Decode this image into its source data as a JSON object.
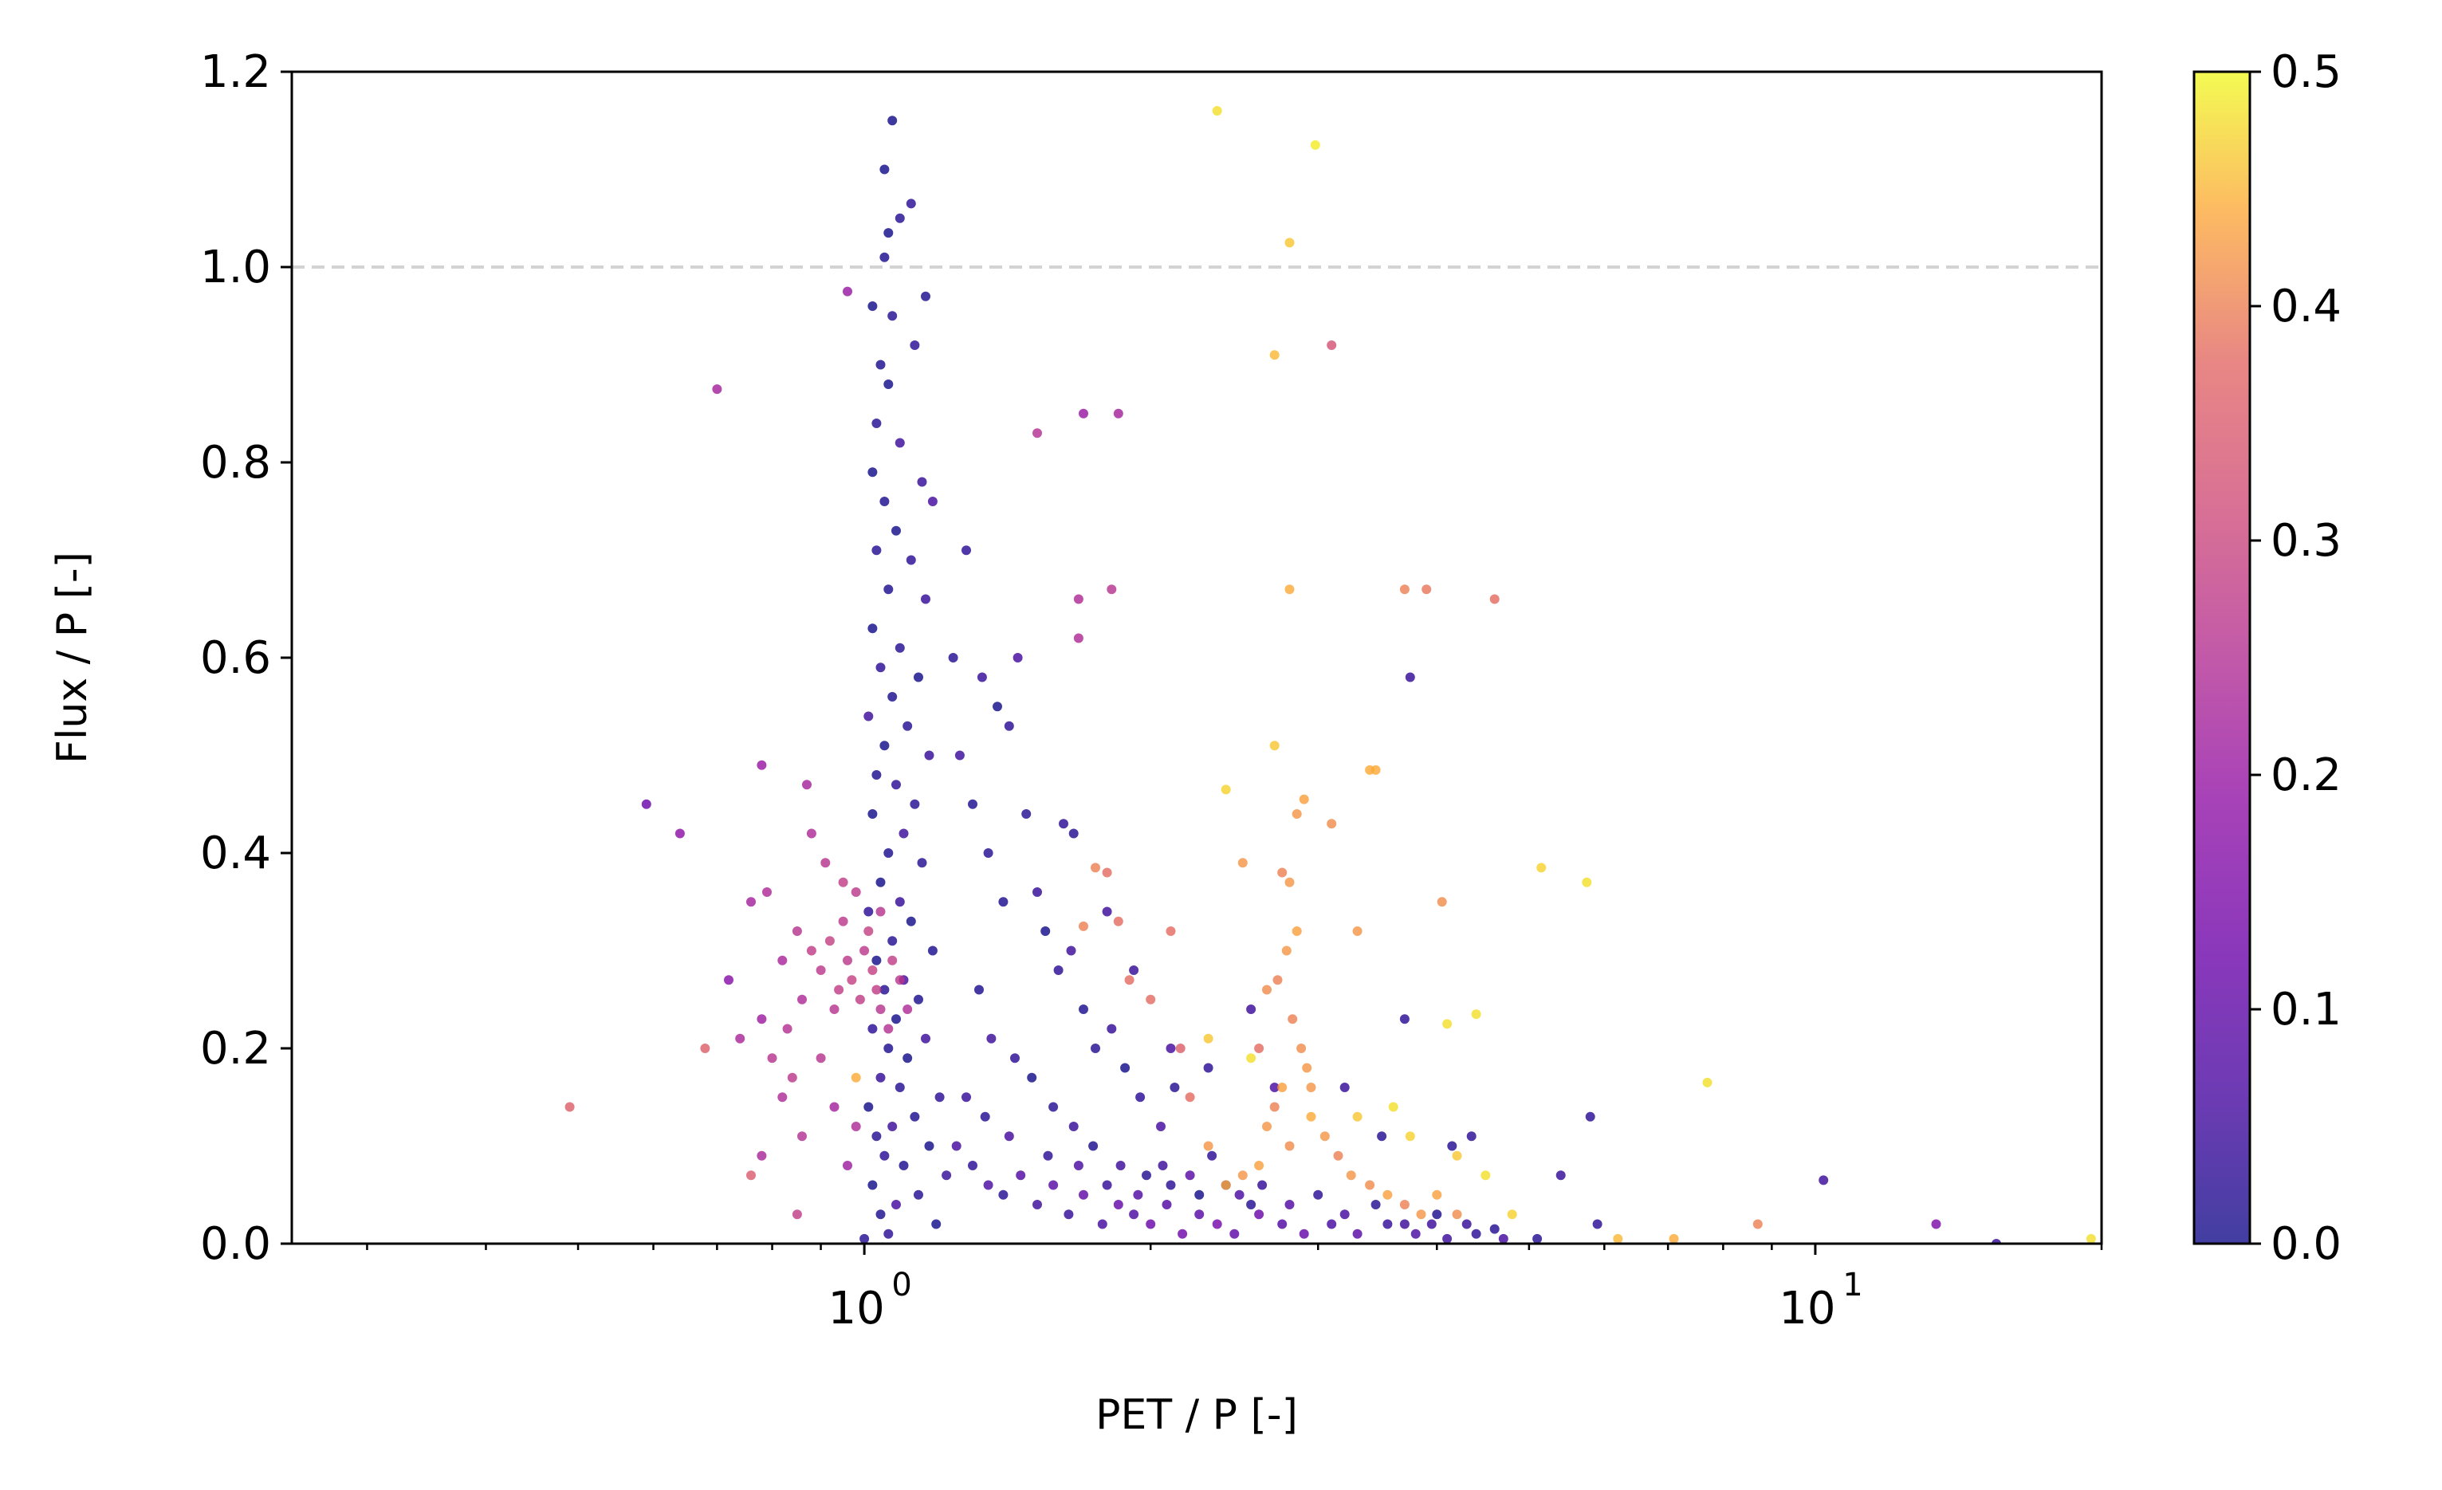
{
  "chart_data": {
    "type": "scatter",
    "title": "",
    "xlabel": "PET / P [-]",
    "ylabel": "Flux / P [-]",
    "xscale": "log",
    "xlim": [
      0.25,
      20
    ],
    "ylim": [
      0,
      1.2
    ],
    "x_ticks": [
      {
        "value": 1,
        "base": "10",
        "exp": "0"
      },
      {
        "value": 10,
        "base": "10",
        "exp": "1"
      }
    ],
    "y_ticks": [
      {
        "value": 0.0,
        "label": "0.0"
      },
      {
        "value": 0.2,
        "label": "0.2"
      },
      {
        "value": 0.4,
        "label": "0.4"
      },
      {
        "value": 0.6,
        "label": "0.6"
      },
      {
        "value": 0.8,
        "label": "0.8"
      },
      {
        "value": 1.0,
        "label": "1.0"
      },
      {
        "value": 1.2,
        "label": "1.2"
      }
    ],
    "reference_line": {
      "y": 1.0,
      "style": "dashed",
      "color": "#d3d3d3"
    },
    "grid": false,
    "legend": "none",
    "colorbar": {
      "colormap": "plasma",
      "range": [
        0.0,
        0.5
      ],
      "ticks": [
        {
          "value": 0.0,
          "label": "0.0"
        },
        {
          "value": 0.1,
          "label": "0.1"
        },
        {
          "value": 0.2,
          "label": "0.2"
        },
        {
          "value": 0.3,
          "label": "0.3"
        },
        {
          "value": 0.4,
          "label": "0.4"
        },
        {
          "value": 0.5,
          "label": "0.5"
        }
      ]
    },
    "points": [
      [
        1.07,
        1.15,
        0.0
      ],
      [
        1.05,
        1.1,
        0.0
      ],
      [
        1.09,
        1.05,
        0.02
      ],
      [
        1.12,
        1.065,
        0.03
      ],
      [
        1.06,
        1.035,
        0.0
      ],
      [
        1.05,
        1.01,
        0.01
      ],
      [
        1.16,
        0.97,
        0.01
      ],
      [
        1.02,
        0.96,
        0.0
      ],
      [
        1.07,
        0.95,
        0.02
      ],
      [
        1.04,
        0.9,
        0.01
      ],
      [
        1.13,
        0.92,
        0.03
      ],
      [
        1.06,
        0.88,
        0.0
      ],
      [
        1.03,
        0.84,
        0.02
      ],
      [
        1.09,
        0.82,
        0.05
      ],
      [
        1.02,
        0.79,
        0.0
      ],
      [
        1.15,
        0.78,
        0.04
      ],
      [
        1.05,
        0.76,
        0.01
      ],
      [
        1.18,
        0.76,
        0.06
      ],
      [
        1.08,
        0.73,
        0.0
      ],
      [
        1.03,
        0.71,
        0.02
      ],
      [
        1.12,
        0.7,
        0.03
      ],
      [
        1.06,
        0.67,
        0.01
      ],
      [
        1.16,
        0.66,
        0.04
      ],
      [
        1.02,
        0.63,
        0.0
      ],
      [
        1.09,
        0.61,
        0.02
      ],
      [
        1.04,
        0.59,
        0.03
      ],
      [
        1.14,
        0.58,
        0.0
      ],
      [
        1.07,
        0.56,
        0.01
      ],
      [
        1.01,
        0.54,
        0.05
      ],
      [
        1.11,
        0.53,
        0.02
      ],
      [
        1.05,
        0.51,
        0.0
      ],
      [
        1.17,
        0.5,
        0.04
      ],
      [
        1.03,
        0.48,
        0.01
      ],
      [
        1.08,
        0.47,
        0.03
      ],
      [
        1.13,
        0.45,
        0.02
      ],
      [
        1.02,
        0.44,
        0.0
      ],
      [
        1.1,
        0.42,
        0.05
      ],
      [
        1.06,
        0.4,
        0.01
      ],
      [
        1.15,
        0.39,
        0.02
      ],
      [
        1.04,
        0.37,
        0.0
      ],
      [
        1.09,
        0.35,
        0.04
      ],
      [
        1.01,
        0.34,
        0.03
      ],
      [
        1.12,
        0.33,
        0.0
      ],
      [
        1.07,
        0.31,
        0.02
      ],
      [
        1.18,
        0.3,
        0.01
      ],
      [
        1.03,
        0.29,
        0.0
      ],
      [
        1.1,
        0.27,
        0.06
      ],
      [
        1.05,
        0.26,
        0.02
      ],
      [
        1.14,
        0.25,
        0.01
      ],
      [
        1.08,
        0.23,
        0.0
      ],
      [
        1.02,
        0.22,
        0.03
      ],
      [
        1.16,
        0.21,
        0.05
      ],
      [
        1.06,
        0.2,
        0.01
      ],
      [
        1.11,
        0.19,
        0.0
      ],
      [
        1.04,
        0.17,
        0.04
      ],
      [
        1.09,
        0.16,
        0.02
      ],
      [
        1.2,
        0.15,
        0.03
      ],
      [
        1.01,
        0.14,
        0.0
      ],
      [
        1.13,
        0.13,
        0.01
      ],
      [
        1.07,
        0.12,
        0.05
      ],
      [
        1.03,
        0.11,
        0.02
      ],
      [
        1.17,
        0.1,
        0.0
      ],
      [
        1.05,
        0.09,
        0.03
      ],
      [
        1.1,
        0.08,
        0.01
      ],
      [
        1.22,
        0.07,
        0.04
      ],
      [
        1.02,
        0.06,
        0.0
      ],
      [
        1.14,
        0.05,
        0.02
      ],
      [
        1.08,
        0.04,
        0.06
      ],
      [
        1.04,
        0.03,
        0.01
      ],
      [
        1.19,
        0.02,
        0.0
      ],
      [
        1.06,
        0.01,
        0.03
      ],
      [
        1.0,
        0.005,
        0.02
      ],
      [
        1.24,
        0.6,
        0.02
      ],
      [
        1.28,
        0.71,
        0.03
      ],
      [
        1.26,
        0.5,
        0.05
      ],
      [
        1.3,
        0.45,
        0.01
      ],
      [
        1.33,
        0.58,
        0.04
      ],
      [
        1.35,
        0.4,
        0.02
      ],
      [
        1.38,
        0.55,
        0.0
      ],
      [
        1.42,
        0.53,
        0.03
      ],
      [
        1.45,
        0.6,
        0.06
      ],
      [
        1.4,
        0.35,
        0.01
      ],
      [
        1.48,
        0.44,
        0.02
      ],
      [
        1.52,
        0.36,
        0.04
      ],
      [
        1.55,
        0.32,
        0.0
      ],
      [
        1.6,
        0.28,
        0.03
      ],
      [
        1.65,
        0.3,
        0.05
      ],
      [
        1.7,
        0.24,
        0.01
      ],
      [
        1.75,
        0.2,
        0.02
      ],
      [
        1.82,
        0.22,
        0.04
      ],
      [
        1.88,
        0.18,
        0.0
      ],
      [
        1.95,
        0.15,
        0.03
      ],
      [
        2.05,
        0.12,
        0.06
      ],
      [
        2.12,
        0.16,
        0.02
      ],
      [
        1.32,
        0.26,
        0.01
      ],
      [
        1.36,
        0.21,
        0.05
      ],
      [
        1.44,
        0.19,
        0.03
      ],
      [
        1.5,
        0.17,
        0.0
      ],
      [
        1.58,
        0.14,
        0.02
      ],
      [
        1.66,
        0.12,
        0.04
      ],
      [
        1.74,
        0.1,
        0.01
      ],
      [
        1.86,
        0.08,
        0.05
      ],
      [
        1.98,
        0.07,
        0.02
      ],
      [
        2.1,
        0.06,
        0.03
      ],
      [
        2.25,
        0.05,
        0.0
      ],
      [
        2.4,
        0.06,
        0.04
      ],
      [
        2.55,
        0.04,
        0.02
      ],
      [
        1.25,
        0.1,
        0.06
      ],
      [
        1.3,
        0.08,
        0.03
      ],
      [
        1.35,
        0.06,
        0.07
      ],
      [
        1.4,
        0.05,
        0.02
      ],
      [
        1.46,
        0.07,
        0.08
      ],
      [
        1.52,
        0.04,
        0.05
      ],
      [
        1.58,
        0.06,
        0.09
      ],
      [
        1.64,
        0.03,
        0.04
      ],
      [
        1.7,
        0.05,
        0.1
      ],
      [
        1.78,
        0.02,
        0.06
      ],
      [
        1.85,
        0.04,
        0.11
      ],
      [
        1.92,
        0.03,
        0.07
      ],
      [
        2.0,
        0.02,
        0.12
      ],
      [
        2.08,
        0.04,
        0.08
      ],
      [
        2.16,
        0.01,
        0.13
      ],
      [
        2.25,
        0.03,
        0.09
      ],
      [
        2.35,
        0.02,
        0.14
      ],
      [
        2.45,
        0.01,
        0.1
      ],
      [
        2.6,
        0.03,
        0.12
      ],
      [
        2.75,
        0.02,
        0.08
      ],
      [
        2.9,
        0.01,
        0.11
      ],
      [
        3.1,
        0.02,
        0.06
      ],
      [
        3.3,
        0.01,
        0.09
      ],
      [
        3.55,
        0.02,
        0.04
      ],
      [
        3.8,
        0.01,
        0.07
      ],
      [
        4.1,
        0.005,
        0.05
      ],
      [
        4.4,
        0.01,
        0.03
      ],
      [
        4.7,
        0.005,
        0.06
      ],
      [
        5.1,
        0.005,
        0.02
      ],
      [
        1.28,
        0.15,
        0.04
      ],
      [
        1.34,
        0.13,
        0.02
      ],
      [
        1.42,
        0.11,
        0.06
      ],
      [
        1.56,
        0.09,
        0.03
      ],
      [
        1.68,
        0.08,
        0.07
      ],
      [
        1.8,
        0.06,
        0.04
      ],
      [
        1.94,
        0.05,
        0.08
      ],
      [
        2.06,
        0.08,
        0.05
      ],
      [
        2.2,
        0.07,
        0.09
      ],
      [
        2.32,
        0.09,
        0.03
      ],
      [
        2.48,
        0.05,
        0.07
      ],
      [
        2.62,
        0.06,
        0.04
      ],
      [
        2.8,
        0.04,
        0.08
      ],
      [
        3.0,
        0.05,
        0.03
      ],
      [
        3.2,
        0.03,
        0.06
      ],
      [
        3.45,
        0.04,
        0.02
      ],
      [
        3.7,
        0.02,
        0.05
      ],
      [
        4.0,
        0.03,
        0.01
      ],
      [
        4.3,
        0.02,
        0.04
      ],
      [
        4.6,
        0.015,
        0.02
      ],
      [
        1.62,
        0.43,
        0.03
      ],
      [
        1.66,
        0.42,
        0.02
      ],
      [
        1.8,
        0.34,
        0.05
      ],
      [
        1.92,
        0.28,
        0.04
      ],
      [
        2.1,
        0.2,
        0.06
      ],
      [
        2.3,
        0.18,
        0.03
      ],
      [
        2.55,
        0.24,
        0.05
      ],
      [
        2.7,
        0.16,
        0.07
      ],
      [
        3.2,
        0.16,
        0.04
      ],
      [
        3.5,
        0.11,
        0.02
      ],
      [
        3.7,
        0.23,
        0.03
      ],
      [
        4.15,
        0.1,
        0.02
      ],
      [
        4.35,
        0.11,
        0.03
      ],
      [
        3.95,
        0.02,
        0.05
      ],
      [
        5.8,
        0.13,
        0.03
      ],
      [
        5.4,
        0.07,
        0.04
      ],
      [
        5.9,
        0.02,
        0.03
      ],
      [
        3.75,
        0.58,
        0.04
      ],
      [
        10.2,
        0.065,
        0.05
      ],
      [
        15.5,
        0.0,
        0.04
      ],
      [
        13.4,
        0.02,
        0.15
      ],
      [
        0.7,
        0.875,
        0.22
      ],
      [
        0.96,
        0.975,
        0.2
      ],
      [
        1.7,
        0.85,
        0.2
      ],
      [
        1.85,
        0.85,
        0.22
      ],
      [
        1.82,
        0.67,
        0.26
      ],
      [
        1.68,
        0.66,
        0.24
      ],
      [
        1.52,
        0.83,
        0.25
      ],
      [
        1.68,
        0.62,
        0.24
      ],
      [
        0.59,
        0.45,
        0.12
      ],
      [
        0.64,
        0.42,
        0.18
      ],
      [
        0.78,
        0.49,
        0.2
      ],
      [
        0.87,
        0.47,
        0.22
      ],
      [
        0.88,
        0.42,
        0.24
      ],
      [
        0.91,
        0.39,
        0.26
      ],
      [
        0.95,
        0.37,
        0.28
      ],
      [
        0.98,
        0.36,
        0.27
      ],
      [
        0.76,
        0.35,
        0.22
      ],
      [
        0.79,
        0.36,
        0.24
      ],
      [
        0.82,
        0.29,
        0.23
      ],
      [
        0.85,
        0.32,
        0.26
      ],
      [
        0.88,
        0.3,
        0.28
      ],
      [
        0.9,
        0.28,
        0.27
      ],
      [
        0.92,
        0.31,
        0.29
      ],
      [
        0.94,
        0.26,
        0.28
      ],
      [
        0.96,
        0.29,
        0.27
      ],
      [
        0.97,
        0.27,
        0.29
      ],
      [
        0.99,
        0.25,
        0.28
      ],
      [
        1.0,
        0.3,
        0.27
      ],
      [
        1.02,
        0.28,
        0.29
      ],
      [
        1.03,
        0.26,
        0.28
      ],
      [
        1.04,
        0.24,
        0.26
      ],
      [
        1.01,
        0.32,
        0.29
      ],
      [
        0.95,
        0.33,
        0.27
      ],
      [
        0.93,
        0.24,
        0.26
      ],
      [
        0.86,
        0.25,
        0.24
      ],
      [
        0.83,
        0.22,
        0.25
      ],
      [
        0.8,
        0.19,
        0.26
      ],
      [
        0.78,
        0.23,
        0.21
      ],
      [
        0.72,
        0.27,
        0.17
      ],
      [
        0.74,
        0.21,
        0.23
      ],
      [
        0.84,
        0.17,
        0.27
      ],
      [
        0.82,
        0.15,
        0.24
      ],
      [
        0.9,
        0.19,
        0.26
      ],
      [
        0.93,
        0.14,
        0.22
      ],
      [
        0.86,
        0.11,
        0.25
      ],
      [
        0.78,
        0.09,
        0.23
      ],
      [
        0.76,
        0.07,
        0.35
      ],
      [
        0.85,
        0.03,
        0.28
      ],
      [
        0.68,
        0.2,
        0.36
      ],
      [
        0.49,
        0.14,
        0.36
      ],
      [
        0.96,
        0.08,
        0.21
      ],
      [
        0.98,
        0.12,
        0.24
      ],
      [
        1.04,
        0.34,
        0.26
      ],
      [
        1.07,
        0.29,
        0.28
      ],
      [
        1.09,
        0.27,
        0.27
      ],
      [
        1.06,
        0.22,
        0.25
      ],
      [
        1.11,
        0.24,
        0.24
      ],
      [
        2.35,
        1.16,
        0.48
      ],
      [
        2.98,
        1.125,
        0.49
      ],
      [
        2.8,
        1.025,
        0.46
      ],
      [
        2.7,
        0.91,
        0.45
      ],
      [
        3.1,
        0.92,
        0.33
      ],
      [
        2.8,
        0.67,
        0.44
      ],
      [
        3.7,
        0.67,
        0.4
      ],
      [
        3.9,
        0.67,
        0.39
      ],
      [
        4.6,
        0.66,
        0.38
      ],
      [
        2.7,
        0.51,
        0.46
      ],
      [
        2.4,
        0.465,
        0.47
      ],
      [
        2.9,
        0.455,
        0.43
      ],
      [
        2.85,
        0.44,
        0.42
      ],
      [
        3.4,
        0.485,
        0.44
      ],
      [
        3.45,
        0.485,
        0.44
      ],
      [
        3.1,
        0.43,
        0.41
      ],
      [
        2.5,
        0.39,
        0.42
      ],
      [
        2.75,
        0.38,
        0.4
      ],
      [
        2.8,
        0.37,
        0.42
      ],
      [
        2.1,
        0.32,
        0.38
      ],
      [
        2.3,
        0.21,
        0.46
      ],
      [
        2.55,
        0.19,
        0.48
      ],
      [
        2.65,
        0.26,
        0.41
      ],
      [
        2.72,
        0.27,
        0.4
      ],
      [
        2.78,
        0.3,
        0.42
      ],
      [
        2.85,
        0.32,
        0.43
      ],
      [
        2.82,
        0.23,
        0.4
      ],
      [
        2.88,
        0.2,
        0.41
      ],
      [
        2.92,
        0.18,
        0.42
      ],
      [
        2.75,
        0.16,
        0.43
      ],
      [
        2.7,
        0.14,
        0.4
      ],
      [
        2.65,
        0.12,
        0.42
      ],
      [
        2.8,
        0.1,
        0.41
      ],
      [
        2.95,
        0.13,
        0.44
      ],
      [
        3.05,
        0.11,
        0.42
      ],
      [
        3.15,
        0.09,
        0.4
      ],
      [
        2.6,
        0.08,
        0.43
      ],
      [
        2.5,
        0.07,
        0.42
      ],
      [
        2.4,
        0.06,
        0.44
      ],
      [
        3.25,
        0.07,
        0.42
      ],
      [
        3.4,
        0.06,
        0.41
      ],
      [
        3.55,
        0.05,
        0.43
      ],
      [
        3.7,
        0.04,
        0.4
      ],
      [
        3.85,
        0.03,
        0.42
      ],
      [
        4.0,
        0.05,
        0.43
      ],
      [
        4.2,
        0.03,
        0.41
      ],
      [
        3.3,
        0.32,
        0.42
      ],
      [
        4.05,
        0.35,
        0.41
      ],
      [
        5.15,
        0.385,
        0.47
      ],
      [
        5.75,
        0.37,
        0.48
      ],
      [
        4.1,
        0.225,
        0.48
      ],
      [
        4.4,
        0.235,
        0.48
      ],
      [
        3.3,
        0.13,
        0.46
      ],
      [
        3.6,
        0.14,
        0.48
      ],
      [
        3.75,
        0.11,
        0.47
      ],
      [
        4.2,
        0.09,
        0.46
      ],
      [
        4.5,
        0.07,
        0.48
      ],
      [
        4.8,
        0.03,
        0.47
      ],
      [
        7.7,
        0.165,
        0.48
      ],
      [
        8.7,
        0.02,
        0.4
      ],
      [
        6.2,
        0.005,
        0.45
      ],
      [
        7.1,
        0.005,
        0.44
      ],
      [
        19.5,
        0.005,
        0.48
      ],
      [
        1.7,
        0.325,
        0.4
      ],
      [
        1.75,
        0.385,
        0.4
      ],
      [
        1.8,
        0.38,
        0.38
      ],
      [
        1.85,
        0.33,
        0.38
      ],
      [
        1.9,
        0.27,
        0.38
      ],
      [
        2.0,
        0.25,
        0.38
      ],
      [
        2.15,
        0.2,
        0.36
      ],
      [
        0.98,
        0.17,
        0.44
      ],
      [
        2.3,
        0.1,
        0.42
      ],
      [
        2.2,
        0.15,
        0.38
      ],
      [
        2.6,
        0.2,
        0.38
      ],
      [
        2.95,
        0.16,
        0.42
      ]
    ]
  }
}
